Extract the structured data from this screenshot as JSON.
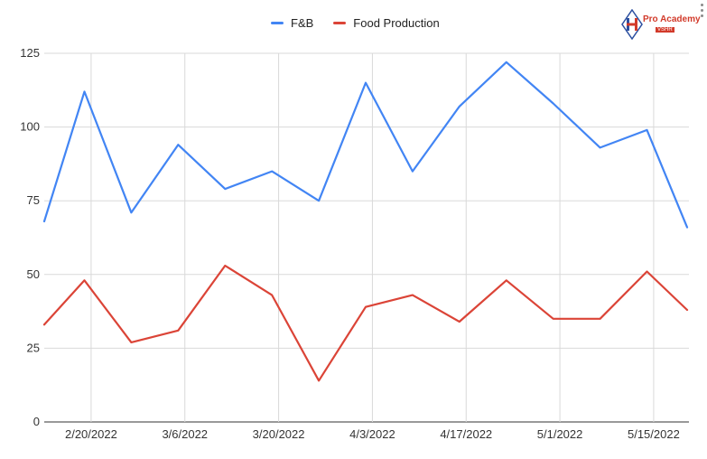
{
  "chart_data": {
    "type": "line",
    "title": "",
    "xlabel": "",
    "ylabel": "",
    "ylim": [
      0,
      125
    ],
    "yticks": [
      0,
      25,
      50,
      75,
      100,
      125
    ],
    "xticks": [
      "2/20/2022",
      "3/6/2022",
      "3/20/2022",
      "4/3/2022",
      "4/17/2022",
      "5/1/2022",
      "5/15/2022"
    ],
    "x": [
      "2/13/2022",
      "2/19/2022",
      "2/26/2022",
      "3/5/2022",
      "3/12/2022",
      "3/19/2022",
      "3/26/2022",
      "4/2/2022",
      "4/9/2022",
      "4/16/2022",
      "4/23/2022",
      "4/30/2022",
      "5/7/2022",
      "5/14/2022",
      "5/20/2022"
    ],
    "grid": true,
    "legend": "top-center",
    "series": [
      {
        "name": "F&B",
        "color": "#4285F4",
        "values": [
          68,
          112,
          71,
          94,
          79,
          85,
          75,
          115,
          85,
          107,
          122,
          108,
          93,
          99,
          66
        ]
      },
      {
        "name": "Food Production",
        "color": "#DB4437",
        "values": [
          33,
          48,
          27,
          31,
          53,
          43,
          14,
          39,
          43,
          34,
          48,
          35,
          35,
          51,
          38
        ]
      }
    ]
  },
  "logo": {
    "name": "Pro Academy",
    "subtitle": "VSHR"
  }
}
